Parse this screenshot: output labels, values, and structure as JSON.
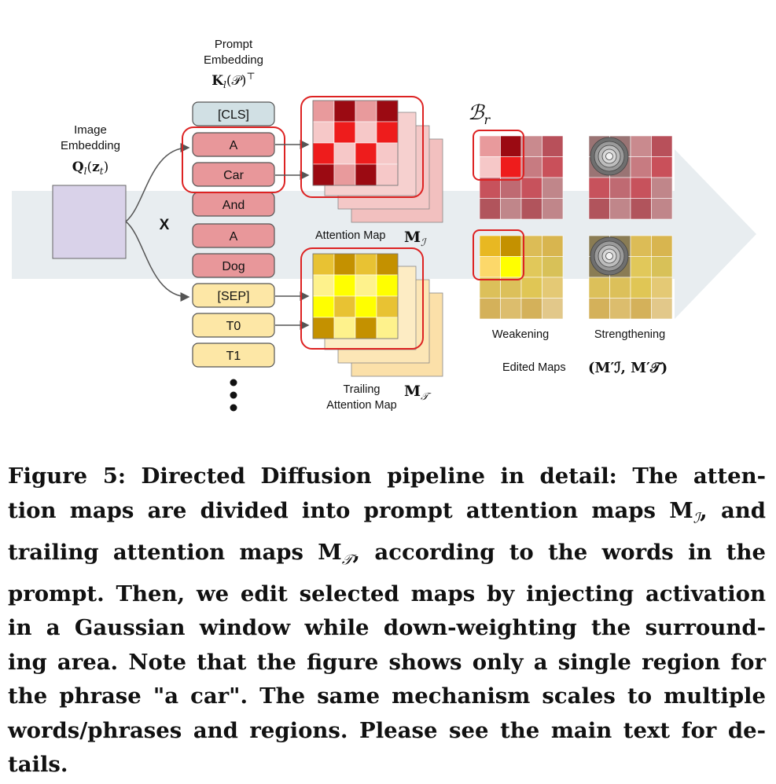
{
  "figure": {
    "prompt_embedding": {
      "title_lines": [
        "Prompt",
        "Embedding"
      ],
      "symbol": "K",
      "symbol_sub": "l",
      "symbol_arg": "(𝒫)",
      "symbol_sup": "⊤"
    },
    "image_embedding": {
      "title_lines": [
        "Image",
        "Embedding"
      ],
      "symbol": "Q",
      "symbol_sub": "l",
      "symbol_arg_open": "(",
      "symbol_arg_var": "z",
      "symbol_arg_sub": "t",
      "symbol_arg_close": ")"
    },
    "multiply_label": "X",
    "tokens": [
      "[CLS]",
      "A",
      "Car",
      "And",
      "A",
      "Dog",
      "[SEP]",
      "T0",
      "T1"
    ],
    "attention_map": {
      "label": "Attention Map",
      "symbol": "M",
      "symbol_sub": "ℐ"
    },
    "trailing_map": {
      "label_lines": [
        "Trailing",
        "Attention Map"
      ],
      "symbol": "M",
      "symbol_sub": "𝒯"
    },
    "region_symbol": "ℬ",
    "region_symbol_sub": "r",
    "panel_labels": {
      "weakening": "Weakening",
      "strengthening": "Strengthening"
    },
    "edited_maps": {
      "label": "Edited Maps",
      "symbol": "(M′ℐ, M′𝒯)"
    },
    "colors": {
      "cls_token": "#d1e0e4",
      "prompt_token": "#e8979a",
      "trailing_token": "#fde7a6",
      "arrow_band": "#e8edf0",
      "highlight_red": "#dd2222",
      "image_embedding": "#d9d2e9"
    }
  },
  "caption": {
    "lines": [
      "Figure 5: Directed Diffusion pipeline in detail: The atten-",
      "tion maps are divided into prompt attention maps M",
      "trailing attention maps M",
      "prompt. Then, we edit selected maps by injecting activation",
      "in a Gaussian window while down-weighting the surround-",
      "ing area. Note that the figure shows only a single region for",
      "the phrase \"a car\". The same mechanism scales to multiple",
      "words/phrases and regions. Please see the main text for de-",
      "tails."
    ],
    "line2_sub": "ℐ",
    "line2_tail": ", and",
    "line3_sub": "𝒯",
    "line3_tail": ", according to the words in the"
  }
}
